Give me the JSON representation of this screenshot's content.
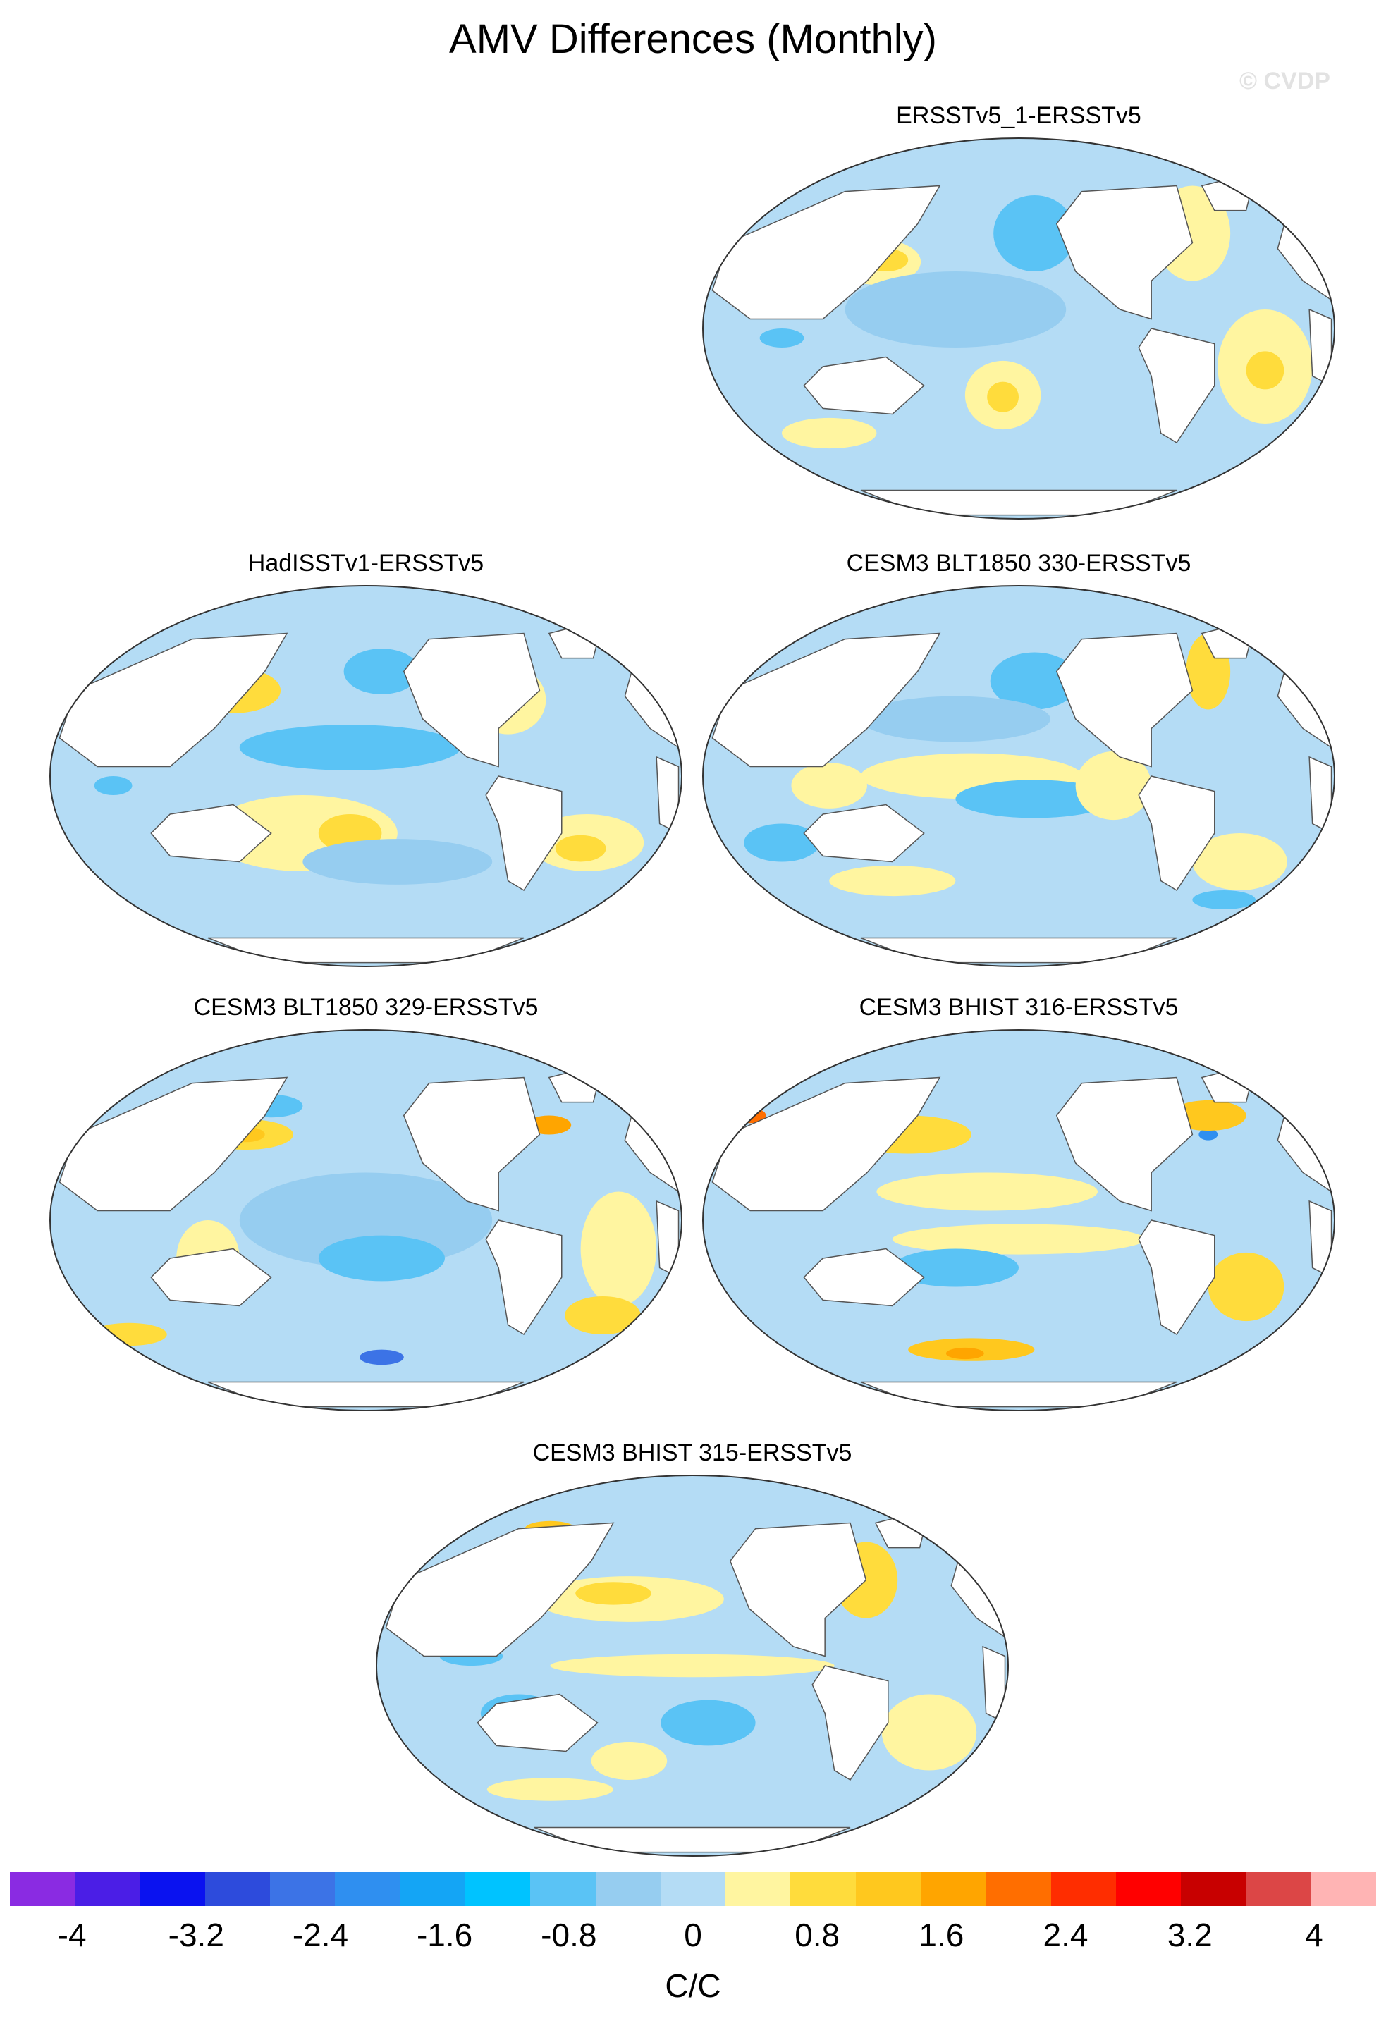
{
  "title": "AMV Differences (Monthly)",
  "watermark": "© CVDP",
  "panels": [
    {
      "title": "ERSSTv5_1-ERSSTv5",
      "variant": 0
    },
    {
      "title": "HadISSTv1-ERSSTv5",
      "variant": 1
    },
    {
      "title": "CESM3 BLT1850 330-ERSSTv5",
      "variant": 2
    },
    {
      "title": "CESM3 BLT1850 329-ERSSTv5",
      "variant": 3
    },
    {
      "title": "CESM3 BHIST 316-ERSSTv5",
      "variant": 4
    },
    {
      "title": "CESM3 BHIST 315-ERSSTv5",
      "variant": 5
    }
  ],
  "colorbar": {
    "units": "C/C",
    "range": [
      -4.4,
      4.4
    ],
    "colors": [
      "#8a2be2",
      "#4b1ee6",
      "#0a12f0",
      "#2d4bdc",
      "#3c73e6",
      "#2f8ff0",
      "#14a5f5",
      "#00c3ff",
      "#5ac3f5",
      "#96cdf0",
      "#b4dcf5",
      "#fff5a0",
      "#ffdc3c",
      "#ffc81e",
      "#ffa500",
      "#ff6e00",
      "#ff2d00",
      "#ff0000",
      "#c80000",
      "#dc4646",
      "#ffb4b4"
    ],
    "tick_labels": [
      "-4",
      "-3.2",
      "-2.4",
      "-1.6",
      "-0.8",
      "0",
      "0.8",
      "1.6",
      "2.4",
      "3.2",
      "4"
    ],
    "tick_values": [
      -4,
      -3.2,
      -2.4,
      -1.6,
      -0.8,
      0,
      0.8,
      1.6,
      2.4,
      3.2,
      4
    ]
  }
}
